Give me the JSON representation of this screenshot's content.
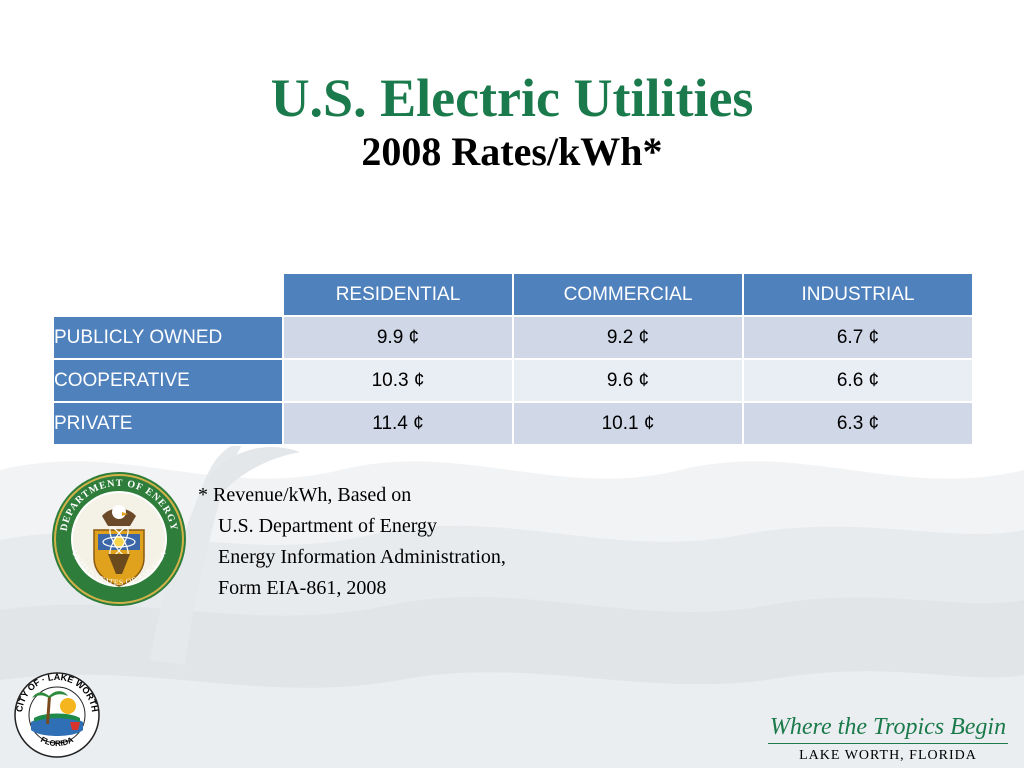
{
  "slide": {
    "title": "U.S. Electric Utilities",
    "subtitle": "2008 Rates/kWh*"
  },
  "table": {
    "columns": [
      "RESIDENTIAL",
      "COMMERCIAL",
      "INDUSTRIAL"
    ],
    "rows": [
      {
        "label": "PUBLICLY OWNED",
        "values": [
          "9.9 ¢",
          "9.2 ¢",
          "6.7 ¢"
        ]
      },
      {
        "label": "COOPERATIVE",
        "values": [
          "10.3 ¢",
          "9.6 ¢",
          "6.6 ¢"
        ]
      },
      {
        "label": "PRIVATE",
        "values": [
          "11.4 ¢",
          "10.1 ¢",
          "6.3 ¢"
        ]
      }
    ]
  },
  "footnote": {
    "lines": [
      "* Revenue/kWh, Based on",
      "U.S. Department of Energy",
      "Energy Information Administration,",
      "Form EIA-861, 2008"
    ]
  },
  "seal": {
    "icon": "department-of-energy-seal-icon",
    "text": "DEPARTMENT OF ENERGY · UNITED STATES OF AMERICA"
  },
  "city_logo": {
    "icon": "city-of-lake-worth-logo-icon",
    "text": "CITY OF LAKE WORTH · FLORIDA"
  },
  "tagline": {
    "script": "Where the Tropics Begin",
    "city": "LAKE WORTH, FLORIDA"
  },
  "colors": {
    "title_green": "#1b7a4c",
    "header_blue": "#4f81bd",
    "row_odd": "#d0d8e8",
    "row_even": "#e9edf4"
  }
}
